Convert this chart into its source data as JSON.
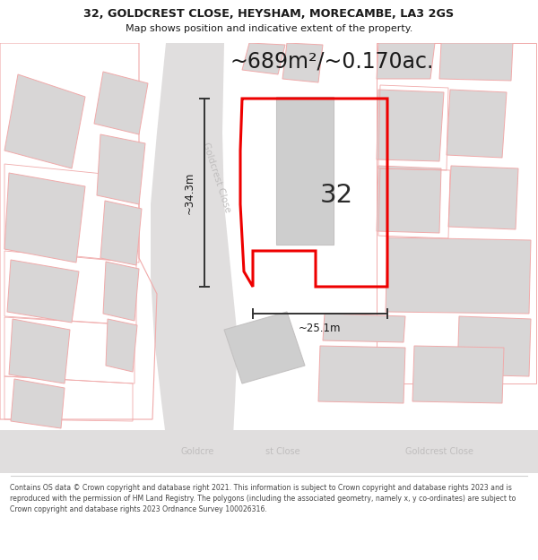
{
  "title_line1": "32, GOLDCREST CLOSE, HEYSHAM, MORECAMBE, LA3 2GS",
  "title_line2": "Map shows position and indicative extent of the property.",
  "area_label": "~689m²/~0.170ac.",
  "house_number": "32",
  "dim_height": "~34.3m",
  "dim_width": "~25.1m",
  "street_road": "Goldcrest Close",
  "street_bottom_left": "st Close",
  "street_bottom_right": "Goldcrest Close",
  "street_bottom_goldc": "Goldc",
  "footer_text": "Contains OS data © Crown copyright and database right 2021. This information is subject to Crown copyright and database rights 2023 and is reproduced with the permission of HM Land Registry. The polygons (including the associated geometry, namely x, y co-ordinates) are subject to Crown copyright and database rights 2023 Ordnance Survey 100026316.",
  "bg_color": "#f2f0f0",
  "road_color": "#e0dede",
  "building_fill": "#d8d6d6",
  "building_fill_main": "#cecece",
  "building_edge_red": "#f0aaaa",
  "building_edge_gray": "#c4c2c2",
  "red_boundary": "#ee0000",
  "dark_text": "#1a1a1a",
  "gray_road_text": "#c0bebe",
  "dim_color": "#333333",
  "footer_line": "#d0d0d0"
}
